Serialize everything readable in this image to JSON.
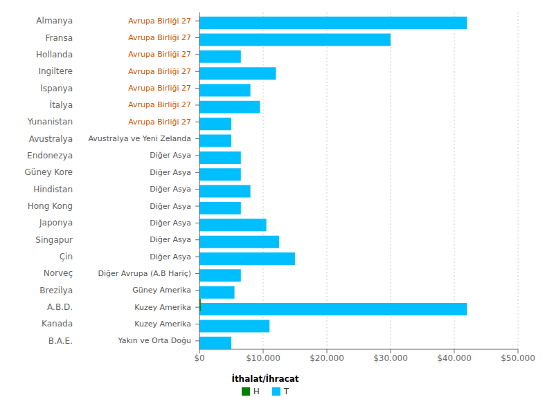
{
  "chart_data": {
    "type": "bar",
    "orientation": "horizontal",
    "categories": [
      "Almanya",
      "Fransa",
      "Hollanda",
      "Ingiltere",
      "İspanya",
      "İtalya",
      "Yunanistan",
      "Avustralya",
      "Endonezya",
      "Güney Kore",
      "Hindistan",
      "Hong Kong",
      "Japonya",
      "Singapur",
      "Çin",
      "Norveç",
      "Brezilya",
      "A.B.D.",
      "Kanada",
      "B.A.E."
    ],
    "series": [
      {
        "name": "H",
        "color": "#008000",
        "values": [
          0,
          0,
          0,
          0,
          0,
          0,
          0,
          0,
          0,
          0,
          0,
          0,
          0,
          0,
          0,
          0,
          0,
          200,
          0,
          0
        ]
      },
      {
        "name": "T",
        "color": "#00BFFF",
        "values": [
          42000,
          30000,
          6500,
          12000,
          8000,
          9500,
          5000,
          5000,
          6500,
          6500,
          8000,
          6500,
          10500,
          12500,
          15000,
          6500,
          5500,
          42000,
          11000,
          5000
        ]
      }
    ],
    "legend_title": "İthalat/İhracat",
    "legend": "bottom",
    "annotations": [
      {
        "text": "Avrupa Birliği 27",
        "category": "Almanya",
        "color": "#CC5500"
      },
      {
        "text": "Avrupa Birliği 27",
        "category": "Fransa",
        "color": "#CC5500"
      },
      {
        "text": "Avrupa Birliği 27",
        "category": "Hollanda",
        "color": "#CC5500"
      },
      {
        "text": "Avrupa Birliği 27",
        "category": "Ingiltere",
        "color": "#CC5500"
      },
      {
        "text": "Avrupa Birliği 27",
        "category": "İspanya",
        "color": "#CC5500"
      },
      {
        "text": "Avrupa Birliği 27",
        "category": "İtalya",
        "color": "#CC5500"
      },
      {
        "text": "Avrupa Birliği 27",
        "category": "Yunanistan",
        "color": "#CC5500"
      },
      {
        "text": "Avustralya ve Yeni Zelanda",
        "category": "Avustralya",
        "color": "#555555"
      },
      {
        "text": "Diğer Asya",
        "category": "Endonezya",
        "color": "#555555"
      },
      {
        "text": "Diğer Asya",
        "category": "Güney Kore",
        "color": "#555555"
      },
      {
        "text": "Diğer Asya",
        "category": "Hindistan",
        "color": "#555555"
      },
      {
        "text": "Diğer Asya",
        "category": "Hong Kong",
        "color": "#555555"
      },
      {
        "text": "Diğer Asya",
        "category": "Japonya",
        "color": "#555555"
      },
      {
        "text": "Diğer Asya",
        "category": "Singapur",
        "color": "#555555"
      },
      {
        "text": "Diğer Asya",
        "category": "Çin",
        "color": "#555555"
      },
      {
        "text": "Diğer Avrupa (A.B Hariç)",
        "category": "Norveç",
        "color": "#555555"
      },
      {
        "text": "Güney Amerika",
        "category": "Brezilya",
        "color": "#555555"
      },
      {
        "text": "Kuzey Amerika",
        "category": "A.B.D.",
        "color": "#555555"
      },
      {
        "text": "Kuzey Amerika",
        "category": "Kanada",
        "color": "#555555"
      },
      {
        "text": "Yakın ve Orta Doğu",
        "category": "B.A.E.",
        "color": "#555555"
      }
    ],
    "xlim": [
      0,
      50000
    ],
    "xticks": [
      {
        "value": 0,
        "label": "$0"
      },
      {
        "value": 10000,
        "label": "$10.000"
      },
      {
        "value": 20000,
        "label": "$20.000"
      },
      {
        "value": 30000,
        "label": "$30.000"
      },
      {
        "value": 40000,
        "label": "$40.000"
      },
      {
        "value": 50000,
        "label": "$50.000"
      }
    ],
    "grid": true
  }
}
